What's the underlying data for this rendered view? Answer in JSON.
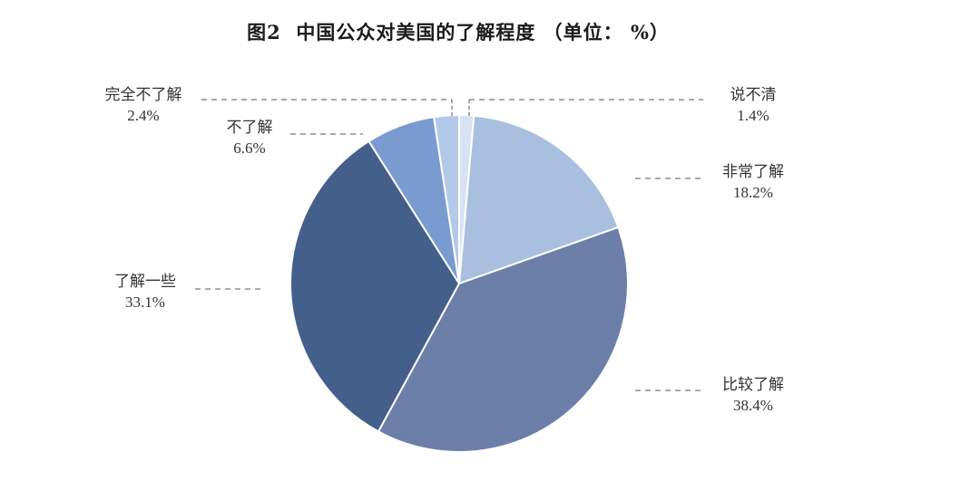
{
  "chart_data": {
    "type": "pie",
    "title": "图2  中国公众对美国的了解程度 （单位： %）",
    "slices": [
      {
        "label": "说不清",
        "value": 1.4,
        "value_label": "1.4%",
        "color": "#d6e3f5"
      },
      {
        "label": "非常了解",
        "value": 18.2,
        "value_label": "18.2%",
        "color": "#a9bfe0"
      },
      {
        "label": "比较了解",
        "value": 38.4,
        "value_label": "38.4%",
        "color": "#6b7fa8"
      },
      {
        "label": "了解一些",
        "value": 33.1,
        "value_label": "33.1%",
        "color": "#455f8c"
      },
      {
        "label": "不了解",
        "value": 6.6,
        "value_label": "6.6%",
        "color": "#7a9bd0"
      },
      {
        "label": "完全不了解",
        "value": 2.4,
        "value_label": "2.4%",
        "color": "#b3c9ea"
      }
    ],
    "start_angle": "12 o'clock",
    "direction": "clockwise",
    "legend": "none",
    "label_style": "outside with dashed leader lines"
  }
}
